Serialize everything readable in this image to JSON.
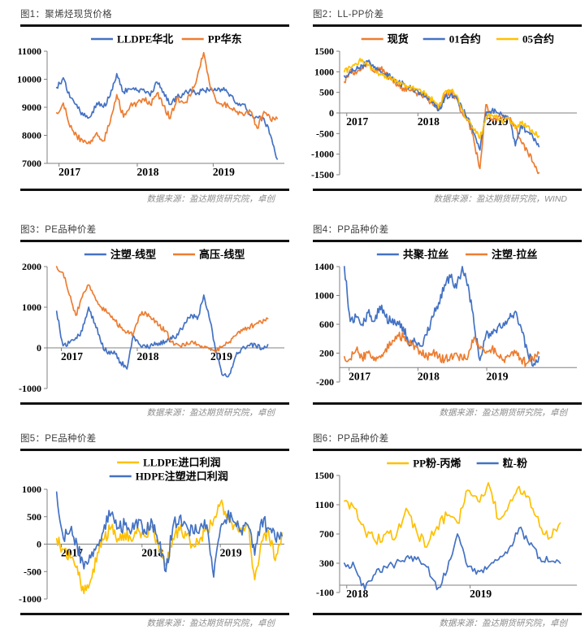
{
  "page": {
    "background": "#ffffff"
  },
  "colors": {
    "blue": "#4472C4",
    "orange": "#ED7D31",
    "yellow": "#FFC000",
    "axis_line": "#808080",
    "tick_text": "#000000",
    "title_text": "#3f3f3f",
    "rule": "#121212",
    "source_text": "#8c8c8c"
  },
  "panels": [
    {
      "title": "图1：聚烯烃现货价格",
      "source": "数据来源：盈达期货研究院，卓创"
    },
    {
      "title": "图2：LL-PP价差",
      "source": "数据来源：盈达期货研究院，WIND"
    },
    {
      "title": "图3：PE品种价差",
      "source": "数据来源：盈达期货研究院，卓创"
    },
    {
      "title": "图4：PP品种价差",
      "source": "数据来源：盈达期货研究院，卓创"
    },
    {
      "title": "图5：PE品种价差",
      "source": "数据来源：盈达期货研究院，卓创"
    },
    {
      "title": "图6：PP品种价差",
      "source": "数据来源：盈达期货研究院，卓创"
    }
  ],
  "chart_data": [
    {
      "type": "line",
      "title": "图1：聚烯烃现货价格",
      "ylim": [
        7000,
        11000
      ],
      "yticks": [
        7000,
        8000,
        9000,
        10000,
        11000
      ],
      "xticks": [
        {
          "label": "2017",
          "pos": 0.05
        },
        {
          "label": "2018",
          "pos": 0.38
        },
        {
          "label": "2019",
          "pos": 0.7
        }
      ],
      "x_range": [
        0.04,
        0.97
      ],
      "legend_rows": 1,
      "grid": false,
      "legend_position": "top-center",
      "x_unit": "monthly Jan2017-Oct2019",
      "series": [
        {
          "name": "LLDPE华北",
          "color_key": "blue",
          "noise": 100,
          "values": [
            9700,
            10050,
            9350,
            9100,
            8700,
            8650,
            9150,
            9000,
            9400,
            10200,
            9550,
            9650,
            9600,
            9650,
            9400,
            9900,
            9550,
            9100,
            9350,
            9450,
            9650,
            9500,
            9600,
            9650,
            9600,
            9700,
            9450,
            9150,
            9100,
            8700,
            8650,
            8600,
            8000,
            7150
          ]
        },
        {
          "name": "PP华东",
          "color_key": "orange",
          "noise": 110,
          "values": [
            8800,
            9150,
            8300,
            8000,
            7750,
            7700,
            8100,
            7800,
            8450,
            9450,
            8650,
            9050,
            9150,
            9300,
            9100,
            9500,
            9050,
            8600,
            9350,
            9150,
            9400,
            10050,
            10950,
            9700,
            9150,
            9100,
            8950,
            8850,
            8700,
            8850,
            8250,
            8850,
            8550,
            8600
          ]
        }
      ]
    },
    {
      "type": "line",
      "title": "图2：LL-PP价差",
      "ylim": [
        -1500,
        1500
      ],
      "yticks": [
        -1500,
        -1000,
        -500,
        0,
        500,
        1000,
        1500
      ],
      "xticks": [
        {
          "label": "2017",
          "pos": 0.03
        },
        {
          "label": "2018",
          "pos": 0.33
        },
        {
          "label": "2019",
          "pos": 0.62
        }
      ],
      "x_range": [
        0.02,
        0.84
      ],
      "legend_rows": 1,
      "grid": false,
      "legend_position": "top-center",
      "x_unit": "monthly Jan2017-Oct2019",
      "series": [
        {
          "name": "现货",
          "color_key": "orange",
          "noise": 80,
          "values": [
            750,
            1050,
            950,
            1100,
            1250,
            1000,
            1100,
            950,
            800,
            700,
            600,
            550,
            500,
            450,
            350,
            200,
            100,
            450,
            500,
            350,
            0,
            -150,
            -700,
            -1350,
            200,
            -150,
            -100,
            -50,
            -150,
            -300,
            -700,
            -900,
            -1200,
            -1450
          ]
        },
        {
          "name": "01合约",
          "color_key": "blue",
          "noise": 70,
          "values": [
            900,
            1000,
            1050,
            1150,
            1250,
            1100,
            1050,
            950,
            850,
            750,
            700,
            620,
            560,
            470,
            400,
            250,
            60,
            350,
            450,
            400,
            80,
            -120,
            -500,
            -900,
            0,
            50,
            0,
            -60,
            -150,
            -800,
            -300,
            -450,
            -600,
            -820
          ]
        },
        {
          "name": "05合约",
          "color_key": "yellow",
          "noise": 70,
          "values": [
            1000,
            1100,
            1200,
            1300,
            1150,
            1050,
            950,
            900,
            820,
            760,
            700,
            650,
            600,
            520,
            450,
            300,
            120,
            500,
            550,
            430,
            60,
            -180,
            -420,
            -620,
            -100,
            -60,
            -120,
            -220,
            -120,
            -380,
            -250,
            -320,
            -480,
            -560
          ]
        }
      ]
    },
    {
      "type": "line",
      "title": "图3：PE品种价差",
      "ylim": [
        -1000,
        2000
      ],
      "yticks": [
        -1000,
        0,
        1000,
        2000
      ],
      "xticks": [
        {
          "label": "2017",
          "pos": 0.06
        },
        {
          "label": "2018",
          "pos": 0.38
        },
        {
          "label": "2019",
          "pos": 0.69
        }
      ],
      "x_range": [
        0.04,
        0.93
      ],
      "legend_rows": 1,
      "grid": false,
      "legend_position": "top-center",
      "x_unit": "monthly Jan2017-Oct2019",
      "series": [
        {
          "name": "注塑-线型",
          "color_key": "blue",
          "noise": 70,
          "values": [
            900,
            50,
            120,
            250,
            420,
            1000,
            600,
            100,
            -150,
            -80,
            -350,
            -520,
            300,
            80,
            0,
            60,
            120,
            160,
            220,
            320,
            620,
            820,
            700,
            1300,
            650,
            -120,
            -680,
            -650,
            -200,
            0,
            60,
            100,
            -40,
            80
          ]
        },
        {
          "name": "高压-线型",
          "color_key": "orange",
          "noise": 60,
          "values": [
            2000,
            1850,
            1300,
            800,
            1250,
            1550,
            1250,
            1000,
            850,
            700,
            500,
            380,
            350,
            820,
            850,
            700,
            550,
            420,
            150,
            80,
            50,
            150,
            80,
            0,
            -30,
            -80,
            40,
            150,
            300,
            420,
            500,
            580,
            620,
            720
          ]
        }
      ]
    },
    {
      "type": "line",
      "title": "图4：PP品种价差",
      "ylim": [
        -200,
        1400
      ],
      "yticks": [
        -200,
        200,
        600,
        1000,
        1400
      ],
      "xticks": [
        {
          "label": "2017",
          "pos": 0.04
        },
        {
          "label": "2018",
          "pos": 0.33
        },
        {
          "label": "2019",
          "pos": 0.62
        }
      ],
      "x_range": [
        0.02,
        0.84
      ],
      "legend_rows": 1,
      "grid": false,
      "legend_position": "top-center",
      "x_unit": "monthly Jan2017-Oct2019",
      "series": [
        {
          "name": "共聚-拉丝",
          "color_key": "blue",
          "noise": 70,
          "values": [
            1400,
            640,
            700,
            600,
            760,
            640,
            850,
            700,
            620,
            640,
            560,
            300,
            360,
            300,
            450,
            700,
            900,
            1150,
            1250,
            1100,
            1400,
            1150,
            600,
            100,
            450,
            500,
            560,
            620,
            680,
            780,
            550,
            250,
            20,
            150
          ]
        },
        {
          "name": "注塑-拉丝",
          "color_key": "orange",
          "noise": 60,
          "values": [
            150,
            120,
            250,
            140,
            200,
            100,
            160,
            260,
            320,
            450,
            420,
            340,
            300,
            200,
            150,
            200,
            150,
            100,
            160,
            200,
            110,
            160,
            420,
            260,
            200,
            260,
            160,
            110,
            150,
            200,
            110,
            60,
            110,
            200
          ]
        }
      ]
    },
    {
      "type": "line",
      "title": "图5：PE品种价差",
      "ylim": [
        -1000,
        1000
      ],
      "yticks": [
        -1000,
        -500,
        0,
        500,
        1000
      ],
      "xticks": [
        {
          "label": "2017",
          "pos": 0.06
        },
        {
          "label": "2018",
          "pos": 0.4
        },
        {
          "label": "2019",
          "pos": 0.73
        }
      ],
      "x_range": [
        0.04,
        0.99
      ],
      "legend_rows": 2,
      "grid": false,
      "legend_position": "top-center",
      "x_unit": "monthly Jan2017-Oct2019",
      "series": [
        {
          "name": "LLDPE进口利润",
          "color_key": "yellow",
          "noise": 120,
          "values": [
            100,
            -100,
            -250,
            -400,
            -900,
            -650,
            -150,
            100,
            300,
            100,
            200,
            50,
            250,
            150,
            300,
            -100,
            -350,
            100,
            250,
            150,
            0,
            100,
            250,
            450,
            750,
            550,
            350,
            300,
            350,
            -650,
            50,
            250,
            -300,
            200
          ]
        },
        {
          "name": "HDPE注塑进口利润",
          "color_key": "blue",
          "noise": 130,
          "values": [
            950,
            100,
            250,
            0,
            -450,
            -250,
            0,
            350,
            550,
            300,
            350,
            250,
            450,
            200,
            400,
            0,
            -500,
            300,
            500,
            350,
            200,
            300,
            350,
            -600,
            300,
            500,
            400,
            250,
            350,
            -200,
            450,
            300,
            100,
            150
          ]
        }
      ]
    },
    {
      "type": "line",
      "title": "图6：PP品种价差",
      "ylim": [
        -100,
        1500
      ],
      "yticks": [
        -100,
        300,
        700,
        1100,
        1500
      ],
      "xticks": [
        {
          "label": "2018",
          "pos": 0.03
        },
        {
          "label": "2019",
          "pos": 0.55
        }
      ],
      "x_range": [
        0.02,
        0.93
      ],
      "legend_rows": 1,
      "grid": false,
      "legend_position": "top-center",
      "x_unit": "monthly Jan2018-Oct2019",
      "series": [
        {
          "name": "PP粉-丙烯",
          "color_key": "yellow",
          "noise": 80,
          "values": [
            1150,
            1050,
            750,
            600,
            700,
            650,
            1050,
            750,
            520,
            800,
            950,
            850,
            1300,
            1150,
            1400,
            900,
            1100,
            1350,
            1200,
            800,
            650,
            850
          ]
        },
        {
          "name": "粒-粉",
          "color_key": "blue",
          "noise": 60,
          "values": [
            300,
            250,
            -60,
            150,
            250,
            300,
            380,
            350,
            250,
            -60,
            200,
            700,
            250,
            200,
            250,
            350,
            500,
            780,
            550,
            380,
            320,
            300
          ]
        }
      ]
    }
  ]
}
